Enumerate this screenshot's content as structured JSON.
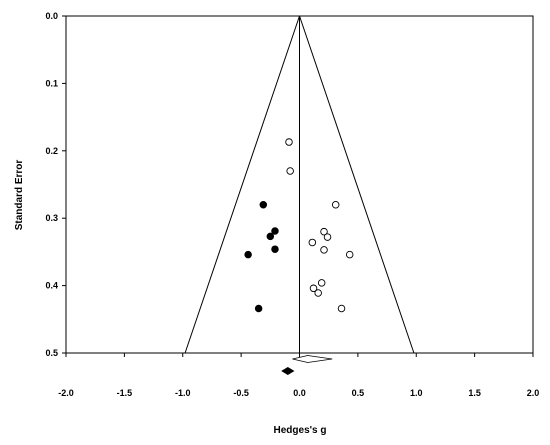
{
  "chart_data": {
    "type": "scatter",
    "title": "",
    "xlabel": "Hedges's g",
    "ylabel": "Standard Error",
    "xlim": [
      -2.0,
      2.0
    ],
    "ylim": [
      0.0,
      0.5
    ],
    "y_inverted": true,
    "x_ticks": [
      "-2.0",
      "-1.5",
      "-1.0",
      "-0.5",
      "0.0",
      "0.5",
      "1.0",
      "1.5",
      "2.0"
    ],
    "y_ticks": [
      "0.0",
      "0.1",
      "0.2",
      "0.3",
      "0.4",
      "0.5"
    ],
    "grid": false,
    "funnel": {
      "center_effect": 0.0,
      "apex_se": 0.0,
      "base_se": 0.5,
      "base_left": -0.98,
      "base_right": 0.98
    },
    "series": [
      {
        "marker": "open-circle",
        "points": [
          {
            "x": -0.09,
            "y": 0.187
          },
          {
            "x": -0.08,
            "y": 0.23
          },
          {
            "x": 0.31,
            "y": 0.28
          },
          {
            "x": 0.21,
            "y": 0.32
          },
          {
            "x": 0.24,
            "y": 0.328
          },
          {
            "x": 0.11,
            "y": 0.336
          },
          {
            "x": 0.21,
            "y": 0.347
          },
          {
            "x": 0.43,
            "y": 0.354
          },
          {
            "x": 0.19,
            "y": 0.396
          },
          {
            "x": 0.12,
            "y": 0.404
          },
          {
            "x": 0.16,
            "y": 0.411
          },
          {
            "x": 0.36,
            "y": 0.434
          }
        ]
      },
      {
        "marker": "filled-circle",
        "points": [
          {
            "x": -0.31,
            "y": 0.28
          },
          {
            "x": -0.21,
            "y": 0.319
          },
          {
            "x": -0.25,
            "y": 0.327
          },
          {
            "x": -0.21,
            "y": 0.346
          },
          {
            "x": -0.44,
            "y": 0.354
          },
          {
            "x": -0.35,
            "y": 0.434
          }
        ]
      }
    ],
    "summary_diamonds": [
      {
        "fill": "open",
        "center": 0.07,
        "lower": -0.06,
        "upper": 0.28
      },
      {
        "fill": "filled",
        "center": -0.1,
        "lower": -0.15,
        "upper": -0.05
      }
    ]
  }
}
